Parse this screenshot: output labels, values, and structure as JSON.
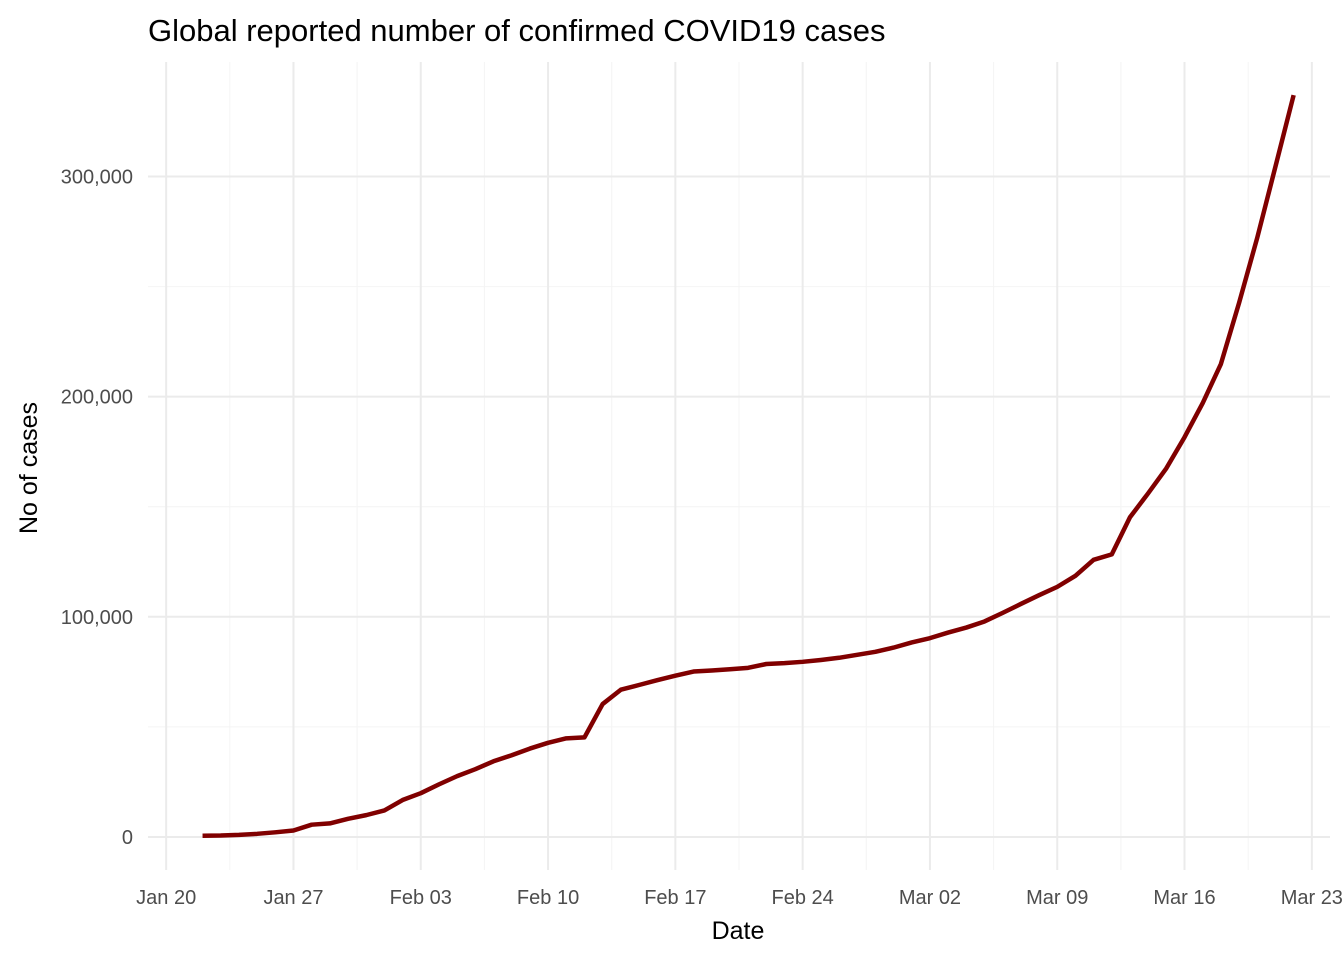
{
  "chart_data": {
    "type": "line",
    "title": "Global reported number of confirmed COVID19 cases",
    "xlabel": "Date",
    "ylabel": "No of cases",
    "x_axis": {
      "type": "date",
      "range": [
        "2020-01-19",
        "2020-03-24"
      ],
      "ticks": [
        "2020-01-20",
        "2020-01-27",
        "2020-02-03",
        "2020-02-10",
        "2020-02-17",
        "2020-02-24",
        "2020-03-02",
        "2020-03-09",
        "2020-03-16",
        "2020-03-23"
      ],
      "tick_labels": [
        "Jan 20",
        "Jan 27",
        "Feb 03",
        "Feb 10",
        "Feb 17",
        "Feb 24",
        "Mar 02",
        "Mar 09",
        "Mar 16",
        "Mar 23"
      ]
    },
    "y_axis": {
      "range": [
        -15000,
        352000
      ],
      "ticks": [
        0,
        100000,
        200000,
        300000
      ],
      "tick_labels": [
        "0",
        "100,000",
        "200,000",
        "300,000"
      ]
    },
    "grid": true,
    "legend": "none",
    "series": [
      {
        "color": "#800000",
        "x": [
          "2020-01-22",
          "2020-01-23",
          "2020-01-24",
          "2020-01-25",
          "2020-01-26",
          "2020-01-27",
          "2020-01-28",
          "2020-01-29",
          "2020-01-30",
          "2020-01-31",
          "2020-02-01",
          "2020-02-02",
          "2020-02-03",
          "2020-02-04",
          "2020-02-05",
          "2020-02-06",
          "2020-02-07",
          "2020-02-08",
          "2020-02-09",
          "2020-02-10",
          "2020-02-11",
          "2020-02-12",
          "2020-02-13",
          "2020-02-14",
          "2020-02-15",
          "2020-02-16",
          "2020-02-17",
          "2020-02-18",
          "2020-02-19",
          "2020-02-20",
          "2020-02-21",
          "2020-02-22",
          "2020-02-23",
          "2020-02-24",
          "2020-02-25",
          "2020-02-26",
          "2020-02-27",
          "2020-02-28",
          "2020-02-29",
          "2020-03-01",
          "2020-03-02",
          "2020-03-03",
          "2020-03-04",
          "2020-03-05",
          "2020-03-06",
          "2020-03-07",
          "2020-03-08",
          "2020-03-09",
          "2020-03-10",
          "2020-03-11",
          "2020-03-12",
          "2020-03-13",
          "2020-03-14",
          "2020-03-15",
          "2020-03-16",
          "2020-03-17",
          "2020-03-18",
          "2020-03-19",
          "2020-03-20",
          "2020-03-21",
          "2020-03-22"
        ],
        "y": [
          555,
          654,
          941,
          1434,
          2118,
          2927,
          5578,
          6166,
          8234,
          9927,
          12038,
          16787,
          19881,
          23892,
          27635,
          30794,
          34391,
          37120,
          40150,
          42762,
          44802,
          45221,
          60368,
          66885,
          69030,
          71224,
          73258,
          75136,
          75639,
          76197,
          76819,
          78572,
          78958,
          79561,
          80406,
          81388,
          82746,
          84112,
          86011,
          88369,
          90306,
          92840,
          95120,
          97886,
          101801,
          105847,
          109821,
          113590,
          118620,
          125875,
          128352,
          145205,
          156101,
          167454,
          181574,
          197102,
          214821,
          242570,
          272208,
          304507,
          336953
        ]
      }
    ]
  }
}
